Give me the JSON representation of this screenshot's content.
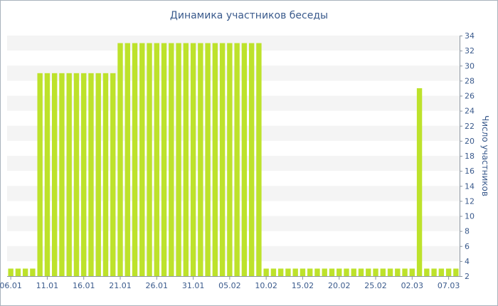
{
  "chart_data": {
    "type": "bar",
    "title": "Динамика участников беседы",
    "xlabel": "",
    "ylabel": "Число участников",
    "ylim": [
      2,
      34
    ],
    "yticks": [
      2,
      4,
      6,
      8,
      10,
      12,
      14,
      16,
      18,
      20,
      22,
      24,
      26,
      28,
      30,
      32,
      34
    ],
    "xtick_labels": [
      "06.01",
      "11.01",
      "16.01",
      "21.01",
      "26.01",
      "31.01",
      "05.02",
      "10.02",
      "15.02",
      "20.02",
      "25.02",
      "02.03",
      "07.03"
    ],
    "xtick_every_n_days": 5,
    "series": [
      {
        "values": [
          3,
          3,
          3,
          3,
          29,
          29,
          29,
          29,
          29,
          29,
          29,
          29,
          29,
          29,
          29,
          33,
          33,
          33,
          33,
          33,
          33,
          33,
          33,
          33,
          33,
          33,
          33,
          33,
          33,
          33,
          33,
          33,
          33,
          33,
          33,
          3,
          3,
          3,
          3,
          3,
          3,
          3,
          3,
          3,
          3,
          3,
          3,
          3,
          3,
          3,
          3,
          3,
          3,
          3,
          3,
          3,
          27,
          3,
          3,
          3,
          3,
          3
        ]
      }
    ],
    "start_label_index": 0,
    "grid": "horizontal-bands",
    "colors": {
      "bar": "#bde22b",
      "band": "#f4f4f4",
      "axis": "#8c96a0",
      "text": "#3a5a8c"
    }
  }
}
